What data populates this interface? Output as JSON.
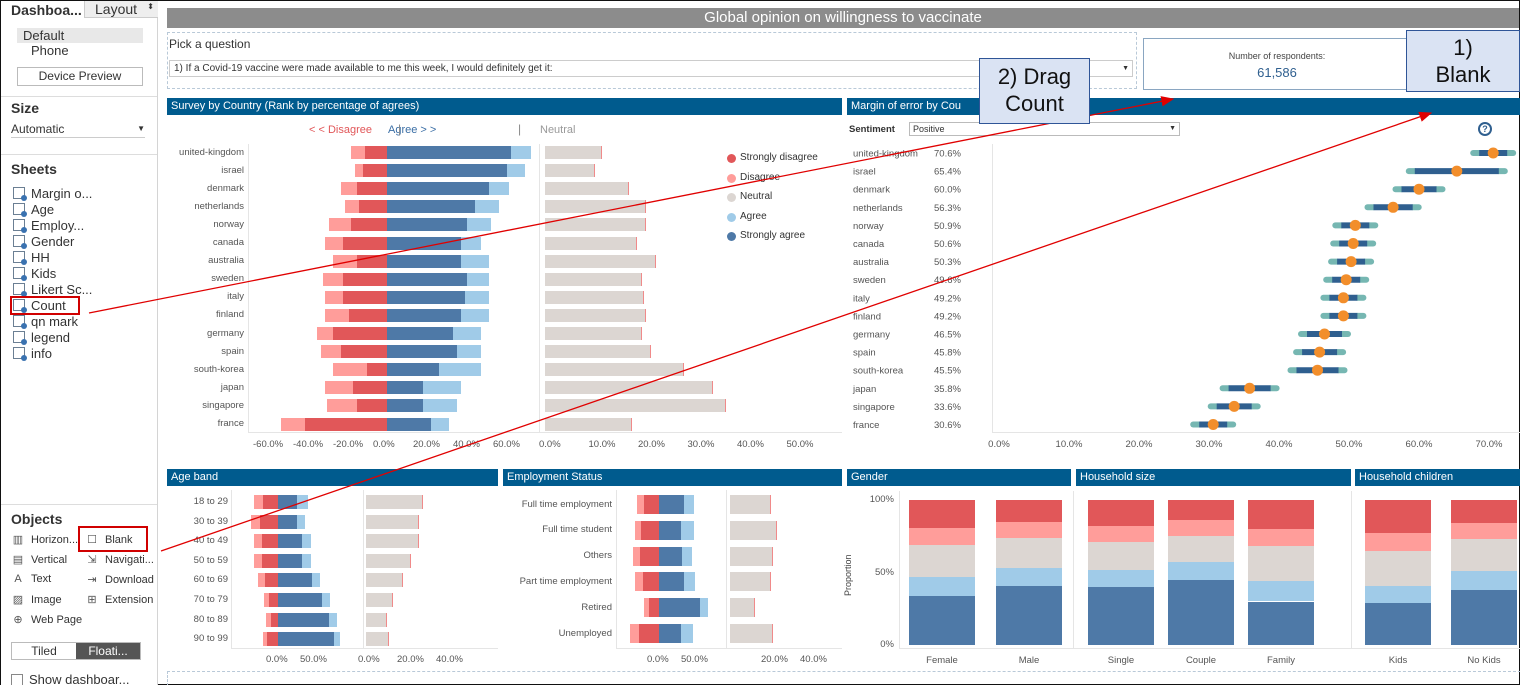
{
  "sidebar": {
    "tab_dashboard": "Dashboa...",
    "tab_layout": "Layout",
    "device_default": "Default",
    "device_phone": "Phone",
    "device_preview": "Device Preview",
    "size_heading": "Size",
    "size_value": "Automatic",
    "sheets_heading": "Sheets",
    "sheets": [
      "Margin o...",
      "Age",
      "Employ...",
      "Gender",
      "HH",
      "Kids",
      "Likert Sc...",
      "Count",
      "qn mark",
      "legend",
      "info"
    ],
    "objects_heading": "Objects",
    "objects_left": [
      {
        "label": "Horizon...",
        "icon": "horizontal-icon"
      },
      {
        "label": "Vertical",
        "icon": "vertical-icon"
      },
      {
        "label": "Text",
        "icon": "text-icon"
      },
      {
        "label": "Image",
        "icon": "image-icon"
      },
      {
        "label": "Web Page",
        "icon": "globe-icon"
      }
    ],
    "objects_right": [
      {
        "label": "Blank",
        "icon": "blank-icon"
      },
      {
        "label": "Navigati...",
        "icon": "navigation-icon"
      },
      {
        "label": "Download",
        "icon": "download-icon"
      },
      {
        "label": "Extension",
        "icon": "extension-icon"
      }
    ],
    "tiled": "Tiled",
    "floating": "Floati...",
    "show_dashboard": "Show dashboar..."
  },
  "dashboard": {
    "title": "Global opinion on willingness to vaccinate",
    "pick_label": "Pick a question",
    "question": "1) If a Covid-19 vaccine were made available to me this week, I would definitely get it:",
    "respondents_label": "Number of respondents:",
    "respondents_value": "61,586",
    "survey_title": "Survey by Country (Rank by percentage of agrees)",
    "hdr_disagree": "< < Disagree",
    "hdr_agree": "Agree > >",
    "hdr_neutral": "Neutral",
    "margin_title": "Margin of error  by Cou",
    "sentiment_label": "Sentiment",
    "sentiment_value": "Positive",
    "age_title": "Age band",
    "emp_title": "Employment Status",
    "gender_title": "Gender",
    "hh_title": "Household size",
    "kids_title": "Household children",
    "proportion_label": "Proportion",
    "info_icon": "?"
  },
  "legend": [
    {
      "label": "Strongly disagree",
      "color": "#e15759"
    },
    {
      "label": "Disagree",
      "color": "#ff9d9a"
    },
    {
      "label": "Neutral",
      "color": "#dcd6d2"
    },
    {
      "label": "Agree",
      "color": "#a0cbe8"
    },
    {
      "label": "Strongly agree",
      "color": "#4e79a7"
    }
  ],
  "callouts": {
    "drag": "2) Drag Count",
    "blank_line1": "1)",
    "blank_line2": "Blank"
  },
  "survey_xticks": [
    "-60.0%",
    "-40.0%",
    "-20.0%",
    "0.0%",
    "20.0%",
    "40.0%",
    "60.0%"
  ],
  "neutral_xticks": [
    "0.0%",
    "10.0%",
    "20.0%",
    "30.0%",
    "40.0%",
    "50.0%"
  ],
  "margin_xticks": [
    "0.0%",
    "10.0%",
    "20.0%",
    "30.0%",
    "40.0%",
    "50.0%",
    "60.0%",
    "70.0%"
  ],
  "age_xticks": [
    "0.0%",
    "50.0%"
  ],
  "age_nticks": [
    "0.0%",
    "20.0%",
    "40.0%"
  ],
  "emp_xticks": [
    "0.0%",
    "50.0%"
  ],
  "emp_nticks": [
    "20.0%",
    "40.0%"
  ],
  "prop_yticks": [
    "100%",
    "50%",
    "0%"
  ],
  "chart_data": [
    {
      "type": "bar",
      "title": "Survey by Country (Rank by percentage of agrees)",
      "categories": [
        "united-kingdom",
        "israel",
        "denmark",
        "netherlands",
        "norway",
        "canada",
        "australia",
        "sweden",
        "italy",
        "finland",
        "germany",
        "spain",
        "south-korea",
        "japan",
        "singapore",
        "france"
      ],
      "series": [
        {
          "name": "Strongly disagree",
          "values": [
            -11,
            -12,
            -15,
            -14,
            -18,
            -22,
            -15,
            -22,
            -22,
            -19,
            -27,
            -23,
            -10,
            -17,
            -15,
            -41
          ]
        },
        {
          "name": "Disagree",
          "values": [
            -7,
            -4,
            -8,
            -7,
            -11,
            -9,
            -12,
            -10,
            -9,
            -12,
            -8,
            -10,
            -17,
            -14,
            -15,
            -12
          ]
        },
        {
          "name": "Strongly agree",
          "values": [
            62,
            60,
            51,
            44,
            40,
            37,
            37,
            40,
            39,
            37,
            33,
            35,
            26,
            18,
            18,
            22
          ]
        },
        {
          "name": "Agree",
          "values": [
            10,
            9,
            10,
            12,
            12,
            10,
            14,
            11,
            12,
            14,
            14,
            12,
            21,
            19,
            17,
            9
          ]
        },
        {
          "name": "Neutral",
          "values": [
            11.5,
            10,
            17,
            20.5,
            20.5,
            18.5,
            22.5,
            19.5,
            20,
            20.5,
            19.5,
            21.5,
            28,
            34,
            36.5,
            17.5
          ]
        }
      ],
      "xlim": [
        -65,
        65
      ]
    },
    {
      "type": "scatter",
      "title": "Margin of error  by Cou",
      "categories": [
        "united-kingdom",
        "israel",
        "denmark",
        "netherlands",
        "norway",
        "canada",
        "australia",
        "sweden",
        "italy",
        "finland",
        "germany",
        "spain",
        "south-korea",
        "japan",
        "singapore",
        "france"
      ],
      "values": [
        70.6,
        65.4,
        60.0,
        56.3,
        50.9,
        50.6,
        50.3,
        49.6,
        49.2,
        49.2,
        46.5,
        45.8,
        45.5,
        35.8,
        33.6,
        30.6
      ],
      "labels": [
        "70.6%",
        "65.4%",
        "60.0%",
        "56.3%",
        "50.9%",
        "50.6%",
        "50.3%",
        "49.6%",
        "49.2%",
        "49.2%",
        "46.5%",
        "45.8%",
        "45.5%",
        "35.8%",
        "33.6%",
        "30.6%"
      ],
      "error": [
        2,
        6,
        2.5,
        2.8,
        2,
        2,
        2,
        2,
        2,
        2,
        2.5,
        2.5,
        3,
        3,
        2.5,
        2
      ],
      "xlim": [
        0,
        73
      ]
    },
    {
      "type": "bar",
      "title": "Age band",
      "categories": [
        "18 to 29",
        "30 to 39",
        "40 to 49",
        "50 to 59",
        "60 to 69",
        "70 to 79",
        "80 to 89",
        "90 to 99"
      ],
      "series": [
        {
          "name": "Strongly disagree",
          "values": [
            -22,
            -26,
            -23,
            -23,
            -19,
            -13,
            -10,
            -16
          ]
        },
        {
          "name": "Disagree",
          "values": [
            -13,
            -13,
            -13,
            -12,
            -10,
            -7,
            -8,
            -6
          ]
        },
        {
          "name": "Strongly agree",
          "values": [
            28,
            28,
            35,
            36,
            50,
            65,
            75,
            82
          ]
        },
        {
          "name": "Agree",
          "values": [
            16,
            12,
            13,
            13,
            12,
            12,
            12,
            9
          ]
        },
        {
          "name": "Neutral",
          "values": [
            29,
            27,
            27,
            23,
            19,
            14,
            11,
            12
          ]
        }
      ]
    },
    {
      "type": "bar",
      "title": "Employment Status",
      "categories": [
        "Full time employment",
        "Full time student",
        "Others",
        "Part time employment",
        "Retired",
        "Unemployed"
      ],
      "series": [
        {
          "name": "Strongly disagree",
          "values": [
            -22,
            -26,
            -28,
            -24,
            -15,
            -30
          ]
        },
        {
          "name": "Disagree",
          "values": [
            -10,
            -9,
            -10,
            -12,
            -7,
            -12
          ]
        },
        {
          "name": "Strongly agree",
          "values": [
            37,
            33,
            34,
            37,
            60,
            33
          ]
        },
        {
          "name": "Agree",
          "values": [
            15,
            18,
            15,
            16,
            12,
            17
          ]
        },
        {
          "name": "Neutral",
          "values": [
            21,
            24,
            22,
            21,
            13,
            22
          ]
        }
      ]
    },
    {
      "type": "bar",
      "title": "Gender",
      "ylabel": "Proportion",
      "categories": [
        "Female",
        "Male"
      ],
      "series": [
        {
          "name": "Strongly agree",
          "values": [
            34,
            41
          ]
        },
        {
          "name": "Agree",
          "values": [
            13,
            12
          ]
        },
        {
          "name": "Neutral",
          "values": [
            22,
            21
          ]
        },
        {
          "name": "Disagree",
          "values": [
            12,
            11
          ]
        },
        {
          "name": "Strongly disagree",
          "values": [
            19,
            15
          ]
        }
      ]
    },
    {
      "type": "bar",
      "title": "Household size",
      "categories": [
        "Single",
        "Couple",
        "Family"
      ],
      "series": [
        {
          "name": "Strongly agree",
          "values": [
            40,
            45,
            30
          ]
        },
        {
          "name": "Agree",
          "values": [
            12,
            12,
            14
          ]
        },
        {
          "name": "Neutral",
          "values": [
            19,
            18,
            24
          ]
        },
        {
          "name": "Disagree",
          "values": [
            11,
            11,
            12
          ]
        },
        {
          "name": "Strongly disagree",
          "values": [
            18,
            14,
            20
          ]
        }
      ]
    },
    {
      "type": "bar",
      "title": "Household children",
      "categories": [
        "Kids",
        "No Kids"
      ],
      "series": [
        {
          "name": "Strongly agree",
          "values": [
            29,
            38
          ]
        },
        {
          "name": "Agree",
          "values": [
            12,
            13
          ]
        },
        {
          "name": "Neutral",
          "values": [
            24,
            22
          ]
        },
        {
          "name": "Disagree",
          "values": [
            12,
            11
          ]
        },
        {
          "name": "Strongly disagree",
          "values": [
            23,
            16
          ]
        }
      ]
    }
  ]
}
